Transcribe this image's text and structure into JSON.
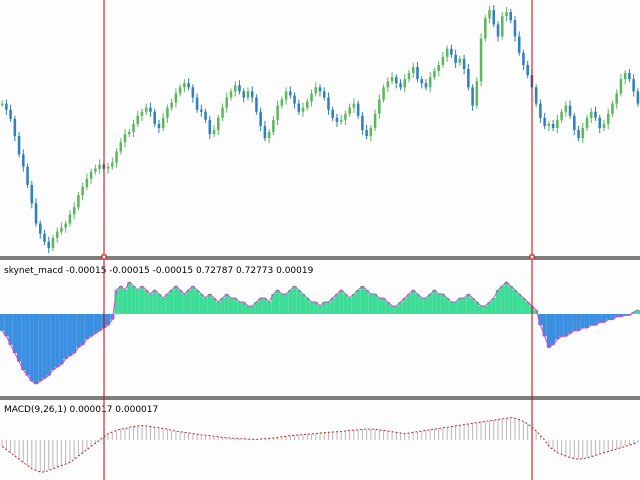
{
  "colors": {
    "background": "#fdfdfd",
    "candle_up": "#5cb85c",
    "candle_down": "#2f7fc1",
    "vline": "#cc0000",
    "pane_border": "#000000",
    "hist_pos": "#3ddc97",
    "hist_neg": "#3a8fe0",
    "signal_line": "#e040c8",
    "macd_bars": "#b8b8b8",
    "macd_signal": "#cc2222"
  },
  "panes": {
    "indicator": {
      "label": "skynet_macd -0.00015 -0.00015 -0.00015 0.72787 0.72773 0.00019"
    },
    "macd": {
      "label": "MACD(9,26,1) 0.000017 0.000017"
    }
  },
  "chart_data": [
    {
      "type": "candlestick",
      "pane": "price",
      "series": [
        {
          "name": "",
          "values": [
            96,
            102,
            111,
            128,
            146,
            158,
            176,
            194,
            214,
            224,
            232,
            238,
            228,
            222,
            218,
            214,
            205,
            198,
            186,
            178,
            170,
            163,
            160,
            156,
            160,
            158,
            154,
            143,
            134,
            126,
            124,
            116,
            108,
            104,
            100,
            104,
            116,
            120,
            110,
            100,
            95,
            86,
            80,
            76,
            80,
            90,
            102,
            104,
            112,
            126,
            122,
            110,
            100,
            90,
            84,
            78,
            84,
            90,
            84,
            90,
            104,
            118,
            130,
            124,
            112,
            98,
            92,
            84,
            88,
            96,
            104,
            100,
            94,
            86,
            80,
            84,
            90,
            102,
            110,
            114,
            112,
            106,
            100,
            96,
            108,
            122,
            128,
            120,
            106,
            92,
            80,
            74,
            70,
            76,
            80,
            72,
            66,
            60,
            72,
            76,
            80,
            70,
            64,
            58,
            50,
            42,
            48,
            56,
            52,
            62,
            80,
            98,
            74,
            32,
            12,
            4,
            18,
            30,
            10,
            6,
            14,
            30,
            46,
            58,
            68,
            80,
            96,
            110,
            118,
            116,
            120,
            112,
            104,
            98,
            108,
            122,
            130,
            120,
            110,
            104,
            110,
            120,
            116,
            106,
            96,
            86,
            72,
            66,
            72,
            84,
            96
          ]
        }
      ]
    },
    {
      "type": "bar",
      "pane": "indicator",
      "series": [
        {
          "name": "",
          "values": [
            -0.6,
            -0.8,
            -1.1,
            -1.4,
            -1.7,
            -2.0,
            -2.2,
            -2.4,
            -2.5,
            -2.4,
            -2.3,
            -2.2,
            -2.0,
            -1.9,
            -1.8,
            -1.6,
            -1.5,
            -1.4,
            -1.2,
            -1.1,
            -0.9,
            -0.8,
            -0.7,
            -0.6,
            -0.5,
            -0.4,
            -0.2,
            0.6,
            0.7,
            0.6,
            0.8,
            0.7,
            0.6,
            0.7,
            0.6,
            0.5,
            0.6,
            0.5,
            0.4,
            0.5,
            0.6,
            0.7,
            0.6,
            0.5,
            0.6,
            0.7,
            0.6,
            0.5,
            0.4,
            0.5,
            0.4,
            0.3,
            0.4,
            0.5,
            0.4,
            0.4,
            0.3,
            0.3,
            0.2,
            0.2,
            0.3,
            0.4,
            0.4,
            0.3,
            0.5,
            0.6,
            0.5,
            0.5,
            0.6,
            0.7,
            0.6,
            0.5,
            0.4,
            0.3,
            0.3,
            0.2,
            0.3,
            0.3,
            0.4,
            0.5,
            0.6,
            0.5,
            0.4,
            0.5,
            0.6,
            0.7,
            0.6,
            0.5,
            0.5,
            0.4,
            0.4,
            0.3,
            0.2,
            0.2,
            0.3,
            0.4,
            0.5,
            0.6,
            0.5,
            0.4,
            0.4,
            0.5,
            0.6,
            0.5,
            0.5,
            0.4,
            0.3,
            0.3,
            0.4,
            0.4,
            0.5,
            0.4,
            0.3,
            0.2,
            0.2,
            0.3,
            0.4,
            0.6,
            0.7,
            0.8,
            0.7,
            0.6,
            0.5,
            0.4,
            0.3,
            0.2,
            0.1,
            -0.4,
            -0.8,
            -1.2,
            -1.1,
            -0.9,
            -0.8,
            -0.8,
            -0.7,
            -0.6,
            -0.6,
            -0.5,
            -0.5,
            -0.4,
            -0.4,
            -0.3,
            -0.3,
            -0.2,
            -0.2,
            -0.1,
            -0.1,
            -0.05,
            -0.05,
            0.05,
            0.1
          ]
        }
      ]
    },
    {
      "type": "bar",
      "pane": "macd",
      "series": [
        {
          "name": "",
          "values": [
            -0.2,
            -0.3,
            -0.4,
            -0.5,
            -0.6,
            -0.7,
            -0.8,
            -0.9,
            -0.95,
            -1.0,
            -1.0,
            -0.95,
            -0.9,
            -0.85,
            -0.8,
            -0.75,
            -0.7,
            -0.6,
            -0.5,
            -0.4,
            -0.3,
            -0.2,
            -0.1,
            0.0,
            0.1,
            0.2,
            0.25,
            0.3,
            0.35,
            0.35,
            0.4,
            0.42,
            0.44,
            0.45,
            0.44,
            0.42,
            0.4,
            0.38,
            0.36,
            0.34,
            0.3,
            0.28,
            0.26,
            0.24,
            0.22,
            0.2,
            0.18,
            0.16,
            0.15,
            0.14,
            0.12,
            0.1,
            0.08,
            0.07,
            0.06,
            0.05,
            0.04,
            0.04,
            0.03,
            0.02,
            0.02,
            0.03,
            0.04,
            0.05,
            0.06,
            0.08,
            0.1,
            0.12,
            0.14,
            0.15,
            0.16,
            0.17,
            0.18,
            0.19,
            0.2,
            0.22,
            0.23,
            0.24,
            0.25,
            0.26,
            0.27,
            0.28,
            0.3,
            0.31,
            0.32,
            0.33,
            0.34,
            0.34,
            0.33,
            0.32,
            0.3,
            0.28,
            0.26,
            0.24,
            0.22,
            0.2,
            0.22,
            0.24,
            0.26,
            0.28,
            0.3,
            0.32,
            0.34,
            0.36,
            0.38,
            0.4,
            0.42,
            0.44,
            0.46,
            0.48,
            0.5,
            0.52,
            0.54,
            0.56,
            0.58,
            0.6,
            0.62,
            0.64,
            0.66,
            0.68,
            0.7,
            0.68,
            0.64,
            0.58,
            0.5,
            0.4,
            0.28,
            0.14,
            0.0,
            -0.2,
            -0.3,
            -0.4,
            -0.45,
            -0.5,
            -0.55,
            -0.58,
            -0.6,
            -0.58,
            -0.56,
            -0.52,
            -0.48,
            -0.44,
            -0.4,
            -0.36,
            -0.32,
            -0.28,
            -0.24,
            -0.2,
            -0.16,
            -0.12,
            -0.08,
            -0.04
          ]
        }
      ]
    }
  ]
}
